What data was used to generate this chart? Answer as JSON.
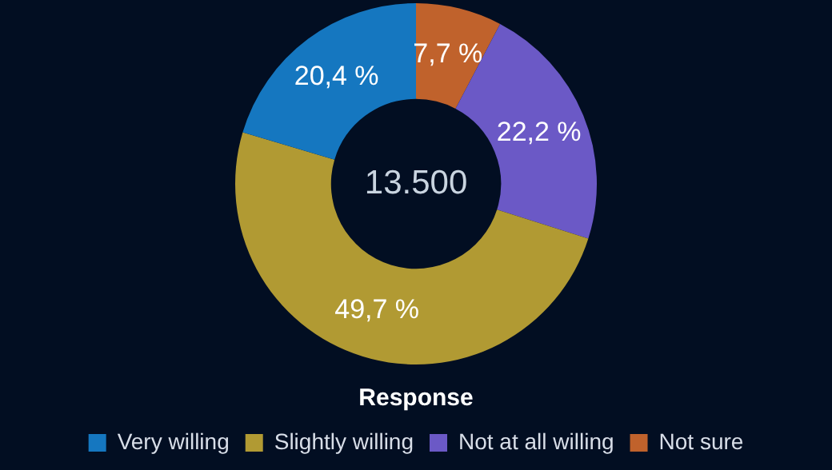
{
  "chart_data": {
    "type": "donut",
    "legend_title": "Response",
    "legend": "bottom",
    "categories": [
      "Very willing",
      "Slightly willing",
      "Not at all willing",
      "Not sure"
    ],
    "values": [
      20.4,
      49.7,
      22.2,
      7.7
    ],
    "colors": [
      "#1577c0",
      "#b19a33",
      "#6b59c6",
      "#c0622c"
    ],
    "value_labels": [
      "20,4 %",
      "49,7 %",
      "22,2 %",
      "7,7 %"
    ],
    "annotations": [
      "13.500"
    ]
  }
}
